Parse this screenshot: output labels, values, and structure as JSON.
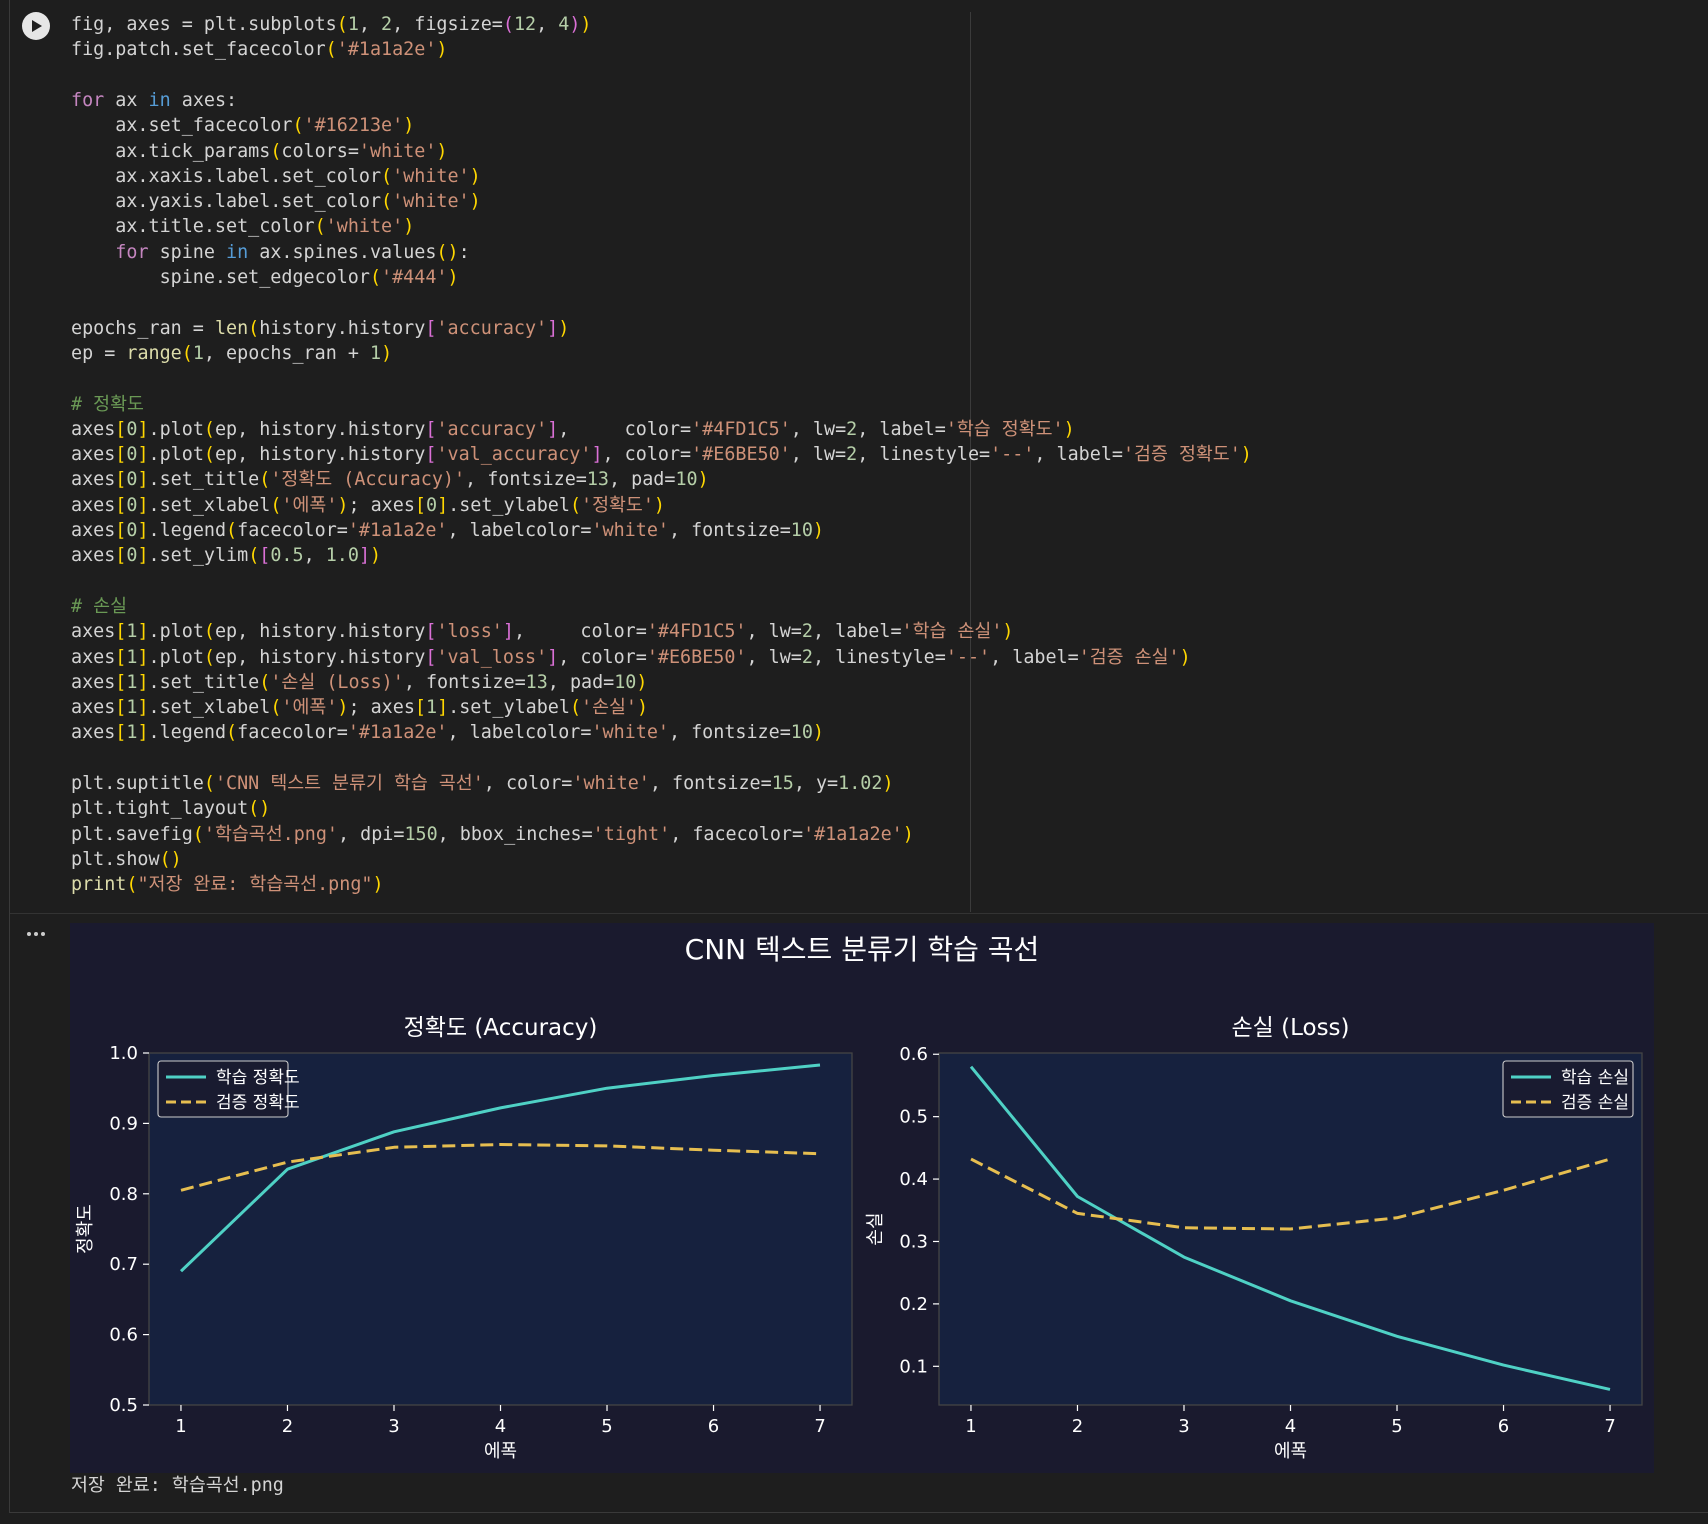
{
  "code": {
    "lines": [
      "fig, axes = plt.subplots(1, 2, figsize=(12, 4))",
      "fig.patch.set_facecolor('#1a1a2e')",
      "",
      "for ax in axes:",
      "    ax.set_facecolor('#16213e')",
      "    ax.tick_params(colors='white')",
      "    ax.xaxis.label.set_color('white')",
      "    ax.yaxis.label.set_color('white')",
      "    ax.title.set_color('white')",
      "    for spine in ax.spines.values():",
      "        spine.set_edgecolor('#444')",
      "",
      "epochs_ran = len(history.history['accuracy'])",
      "ep = range(1, epochs_ran + 1)",
      "",
      "# 정확도",
      "axes[0].plot(ep, history.history['accuracy'],     color='#4FD1C5', lw=2, label='학습 정확도')",
      "axes[0].plot(ep, history.history['val_accuracy'], color='#E6BE50', lw=2, linestyle='--', label='검증 정확도')",
      "axes[0].set_title('정확도 (Accuracy)', fontsize=13, pad=10)",
      "axes[0].set_xlabel('에폭'); axes[0].set_ylabel('정확도')",
      "axes[0].legend(facecolor='#1a1a2e', labelcolor='white', fontsize=10)",
      "axes[0].set_ylim([0.5, 1.0])",
      "",
      "# 손실",
      "axes[1].plot(ep, history.history['loss'],     color='#4FD1C5', lw=2, label='학습 손실')",
      "axes[1].plot(ep, history.history['val_loss'], color='#E6BE50', lw=2, linestyle='--', label='검증 손실')",
      "axes[1].set_title('손실 (Loss)', fontsize=13, pad=10)",
      "axes[1].set_xlabel('에폭'); axes[1].set_ylabel('손실')",
      "axes[1].legend(facecolor='#1a1a2e', labelcolor='white', fontsize=10)",
      "",
      "plt.suptitle('CNN 텍스트 분류기 학습 곡선', color='white', fontsize=15, y=1.02)",
      "plt.tight_layout()",
      "plt.savefig('학습곡선.png', dpi=150, bbox_inches='tight', facecolor='#1a1a2e')",
      "plt.show()",
      "print(\"저장 완료: 학습곡선.png\")"
    ]
  },
  "output": {
    "menu_icon": "ellipsis-icon",
    "stdout": "저장 완료: 학습곡선.png"
  },
  "colors": {
    "fig_bg": "#1a1a2e",
    "axes_bg": "#16213e",
    "spine": "#444444",
    "train": "#4FD1C5",
    "val": "#E6BE50",
    "text": "#ffffff"
  },
  "chart_data": {
    "suptitle": "CNN 텍스트 분류기 학습 곡선",
    "charts": [
      {
        "type": "line",
        "title": "정확도 (Accuracy)",
        "xlabel": "에폭",
        "ylabel": "정확도",
        "x": [
          1,
          2,
          3,
          4,
          5,
          6,
          7
        ],
        "xticks": [
          1,
          2,
          3,
          4,
          5,
          6,
          7
        ],
        "yticks": [
          0.5,
          0.6,
          0.7,
          0.8,
          0.9,
          1.0
        ],
        "ytick_labels": [
          "0.5",
          "0.6",
          "0.7",
          "0.8",
          "0.9",
          "1.0"
        ],
        "xlim": [
          0.7,
          7.3
        ],
        "ylim": [
          0.5,
          1.0
        ],
        "legend_position": "top-left",
        "grid": false,
        "series": [
          {
            "name": "학습 정확도",
            "style": "solid",
            "values": [
              0.69,
              0.835,
              0.888,
              0.922,
              0.95,
              0.968,
              0.983
            ]
          },
          {
            "name": "검증 정확도",
            "style": "dashed",
            "values": [
              0.805,
              0.845,
              0.866,
              0.87,
              0.868,
              0.862,
              0.857
            ]
          }
        ]
      },
      {
        "type": "line",
        "title": "손실 (Loss)",
        "xlabel": "에폭",
        "ylabel": "손실",
        "x": [
          1,
          2,
          3,
          4,
          5,
          6,
          7
        ],
        "xticks": [
          1,
          2,
          3,
          4,
          5,
          6,
          7
        ],
        "yticks": [
          0.1,
          0.2,
          0.3,
          0.4,
          0.5,
          0.6
        ],
        "ytick_labels": [
          "0.1",
          "0.2",
          "0.3",
          "0.4",
          "0.5",
          "0.6"
        ],
        "xlim": [
          0.7,
          7.3
        ],
        "ylim": [
          0.038,
          0.602
        ],
        "legend_position": "top-right",
        "grid": false,
        "series": [
          {
            "name": "학습 손실",
            "style": "solid",
            "values": [
              0.58,
              0.372,
              0.275,
              0.205,
              0.148,
              0.102,
              0.063
            ]
          },
          {
            "name": "검증 손실",
            "style": "dashed",
            "values": [
              0.432,
              0.345,
              0.322,
              0.32,
              0.338,
              0.382,
              0.432
            ]
          }
        ]
      }
    ]
  }
}
